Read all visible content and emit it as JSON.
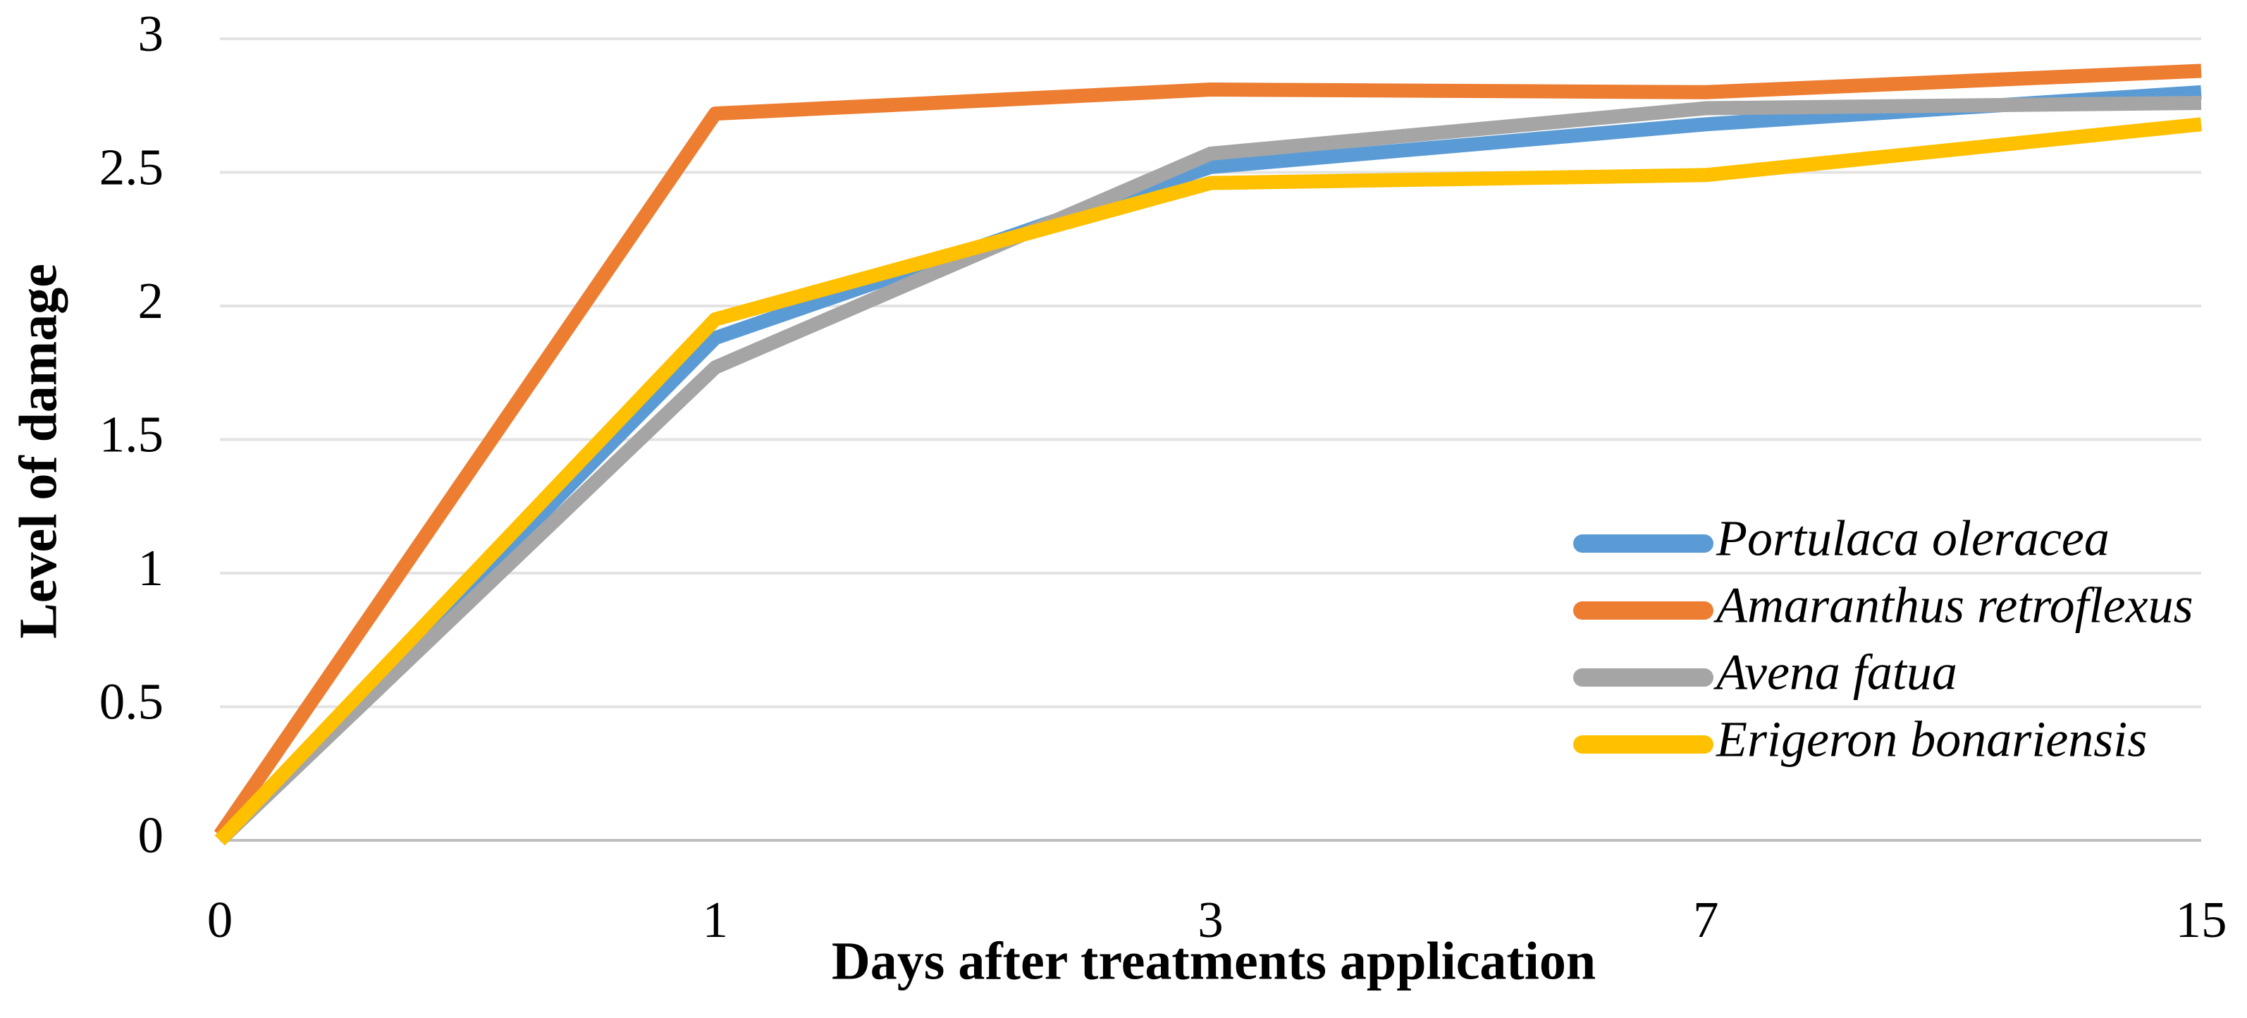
{
  "chart_data": {
    "type": "line",
    "x_label": "Days after treatments application",
    "y_label": "Level of damage",
    "categories": [
      "0",
      "1",
      "3",
      "7",
      "15"
    ],
    "series": [
      {
        "name": "Portulaca oleracea",
        "color": "#5b9bd5",
        "values": [
          0,
          1.88,
          2.52,
          2.68,
          2.8
        ]
      },
      {
        "name": "Amaranthus retroflexus",
        "color": "#ed7d31",
        "values": [
          0.02,
          2.72,
          2.81,
          2.8,
          2.88
        ]
      },
      {
        "name": "Avena fatua",
        "color": "#a5a5a5",
        "values": [
          0,
          1.77,
          2.57,
          2.74,
          2.76
        ]
      },
      {
        "name": "Erigeron bonariensis",
        "color": "#ffc000",
        "values": [
          0,
          1.95,
          2.46,
          2.49,
          2.68
        ]
      }
    ],
    "ylim": [
      0,
      3
    ],
    "yticks": [
      0,
      0.5,
      1,
      1.5,
      2,
      2.5,
      3
    ],
    "grid": true,
    "legend": "right"
  }
}
